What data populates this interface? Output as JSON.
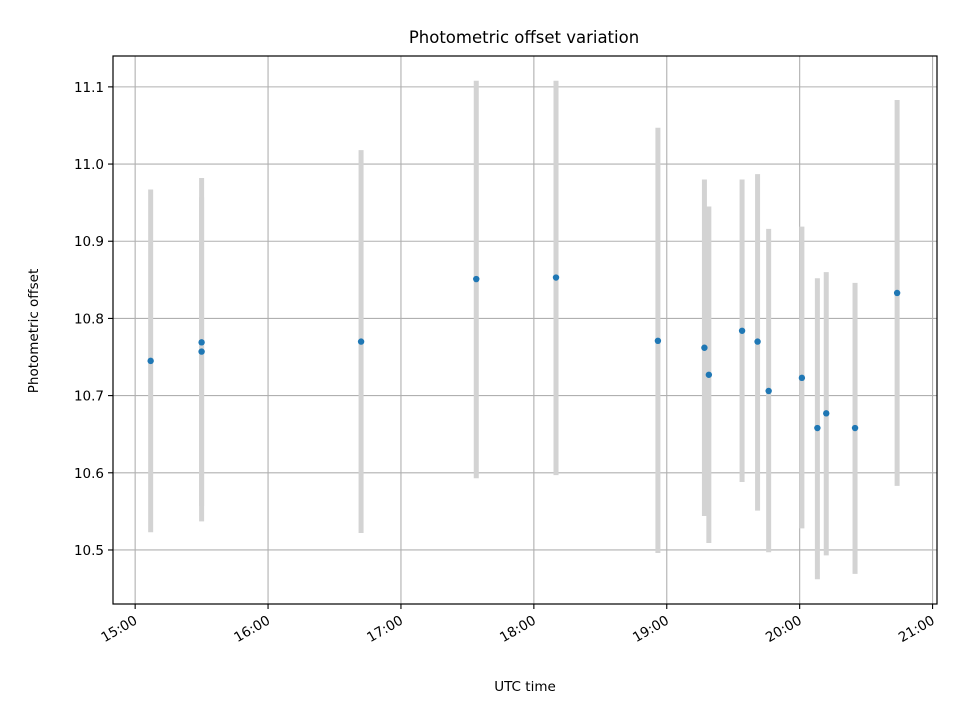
{
  "chart_data": {
    "type": "scatter",
    "title": "Photometric offset variation",
    "xlabel": "UTC time",
    "ylabel": "Photometric offset",
    "xlim": [
      "14:50",
      "21:02"
    ],
    "ylim": [
      10.43,
      11.14
    ],
    "x_ticks": [
      "15:00",
      "16:00",
      "17:00",
      "18:00",
      "19:00",
      "20:00",
      "21:00"
    ],
    "y_ticks": [
      "10.5",
      "10.6",
      "10.7",
      "10.8",
      "10.9",
      "11.0",
      "11.1"
    ],
    "grid": true,
    "points": [
      {
        "x": "15:07",
        "y": 10.745,
        "err_low": 10.523,
        "err_high": 10.967
      },
      {
        "x": "15:30",
        "y": 10.757,
        "err_low": 10.557,
        "err_high": 10.957
      },
      {
        "x": "15:30",
        "y": 10.769,
        "err_low": 10.537,
        "err_high": 10.982
      },
      {
        "x": "16:42",
        "y": 10.77,
        "err_low": 10.522,
        "err_high": 11.018
      },
      {
        "x": "17:34",
        "y": 10.851,
        "err_low": 10.593,
        "err_high": 11.108
      },
      {
        "x": "18:10",
        "y": 10.853,
        "err_low": 10.597,
        "err_high": 11.108
      },
      {
        "x": "18:56",
        "y": 10.771,
        "err_low": 10.496,
        "err_high": 11.047
      },
      {
        "x": "19:17",
        "y": 10.762,
        "err_low": 10.544,
        "err_high": 10.98
      },
      {
        "x": "19:19",
        "y": 10.727,
        "err_low": 10.509,
        "err_high": 10.945
      },
      {
        "x": "19:34",
        "y": 10.784,
        "err_low": 10.588,
        "err_high": 10.98
      },
      {
        "x": "19:41",
        "y": 10.77,
        "err_low": 10.551,
        "err_high": 10.987
      },
      {
        "x": "19:46",
        "y": 10.706,
        "err_low": 10.497,
        "err_high": 10.916
      },
      {
        "x": "20:01",
        "y": 10.723,
        "err_low": 10.528,
        "err_high": 10.919
      },
      {
        "x": "20:08",
        "y": 10.658,
        "err_low": 10.462,
        "err_high": 10.852
      },
      {
        "x": "20:12",
        "y": 10.677,
        "err_low": 10.493,
        "err_high": 10.86
      },
      {
        "x": "20:25",
        "y": 10.658,
        "err_low": 10.469,
        "err_high": 10.846
      },
      {
        "x": "20:44",
        "y": 10.833,
        "err_low": 10.583,
        "err_high": 11.083
      }
    ],
    "colors": {
      "marker": "#1f77b4",
      "errorbar": "#d3d3d3",
      "grid": "#b0b0b0",
      "axes": "#000000"
    }
  }
}
